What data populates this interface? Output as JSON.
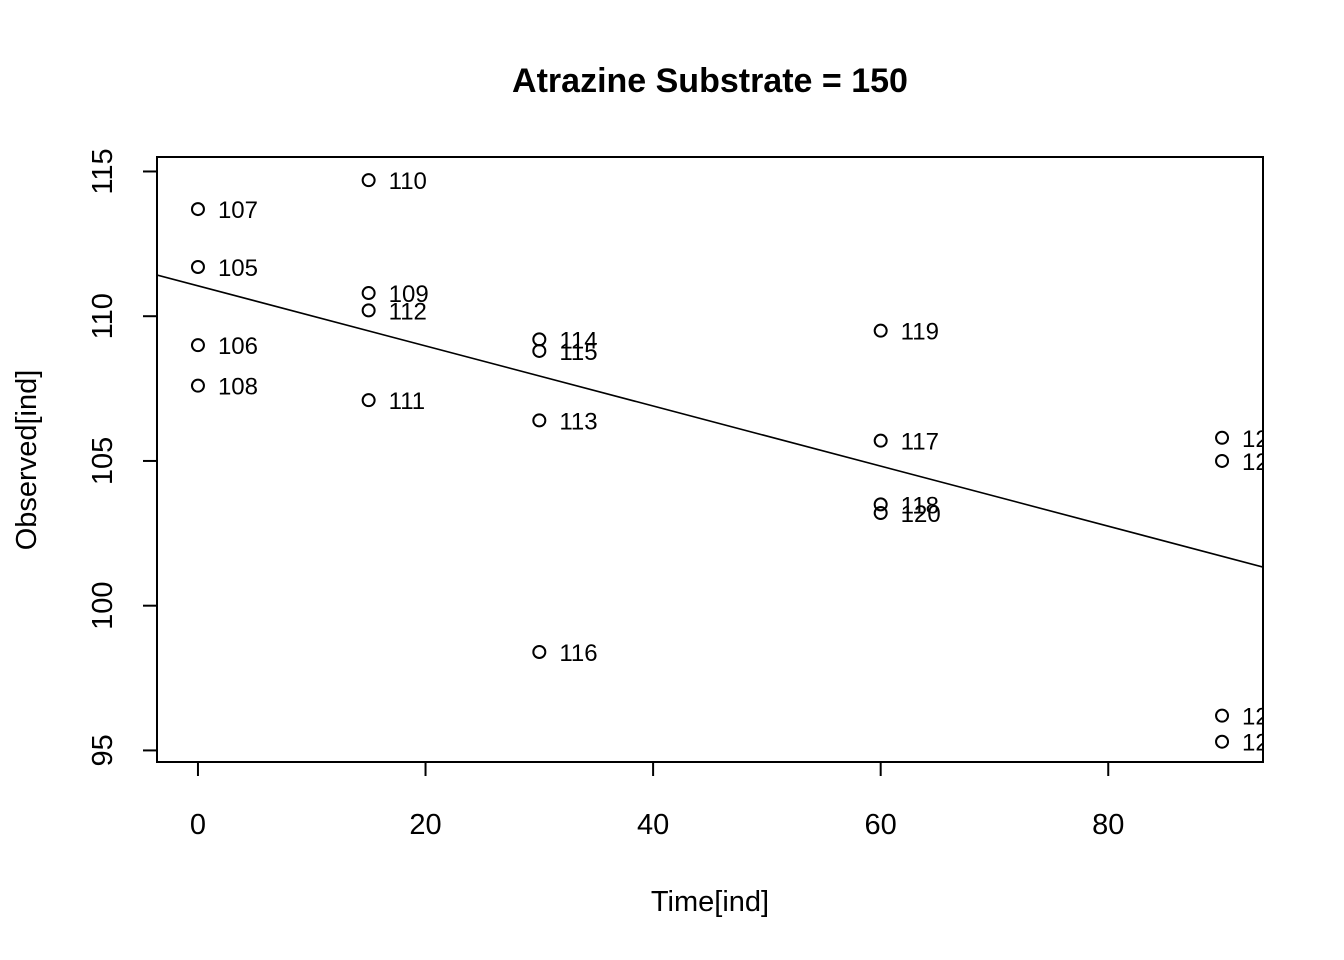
{
  "chart_data": {
    "type": "scatter",
    "title": "Atrazine Substrate = 150",
    "xlabel": "Time[ind]",
    "ylabel": "Observed[ind]",
    "xlim": [
      -3.6,
      93.6
    ],
    "ylim": [
      94.6,
      115.5
    ],
    "xticks": [
      0,
      20,
      40,
      60,
      80
    ],
    "yticks": [
      95,
      100,
      105,
      110,
      115
    ],
    "grid": false,
    "points": [
      {
        "x": 0,
        "y": 111.7,
        "label": "105"
      },
      {
        "x": 0,
        "y": 109.0,
        "label": "106"
      },
      {
        "x": 0,
        "y": 113.7,
        "label": "107"
      },
      {
        "x": 0,
        "y": 107.6,
        "label": "108"
      },
      {
        "x": 15,
        "y": 110.8,
        "label": "109"
      },
      {
        "x": 15,
        "y": 114.7,
        "label": "110"
      },
      {
        "x": 15,
        "y": 107.1,
        "label": "111"
      },
      {
        "x": 15,
        "y": 110.2,
        "label": "112"
      },
      {
        "x": 30,
        "y": 106.4,
        "label": "113"
      },
      {
        "x": 30,
        "y": 109.2,
        "label": "114"
      },
      {
        "x": 30,
        "y": 108.8,
        "label": "115"
      },
      {
        "x": 30,
        "y": 98.4,
        "label": "116"
      },
      {
        "x": 60,
        "y": 105.7,
        "label": "117"
      },
      {
        "x": 60,
        "y": 103.5,
        "label": "118"
      },
      {
        "x": 60,
        "y": 109.5,
        "label": "119"
      },
      {
        "x": 60,
        "y": 103.2,
        "label": "120"
      },
      {
        "x": 90,
        "y": 105.8,
        "label": "12"
      },
      {
        "x": 90,
        "y": 105.0,
        "label": "12"
      },
      {
        "x": 90,
        "y": 96.2,
        "label": "12"
      },
      {
        "x": 90,
        "y": 95.3,
        "label": "12"
      }
    ],
    "fit_line": {
      "intercept": 111.05,
      "slope": -0.1038
    }
  }
}
